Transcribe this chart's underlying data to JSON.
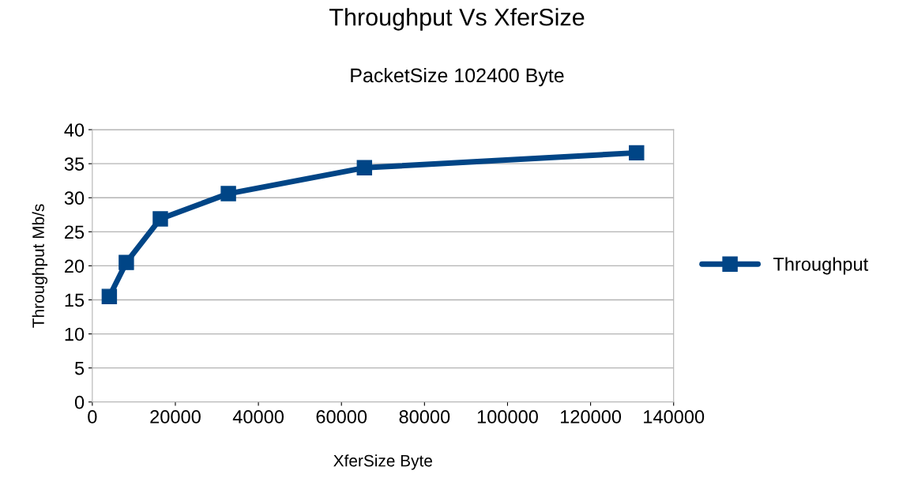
{
  "chart_data": {
    "type": "line",
    "title": "Throughput Vs XferSize",
    "subtitle": "PacketSize 102400 Byte",
    "xlabel": "XferSize Byte",
    "ylabel": "Throughput Mb/s",
    "x": [
      4096,
      8192,
      16384,
      32768,
      65536,
      131072
    ],
    "series": [
      {
        "name": "Throughput",
        "color": "#004586",
        "values": [
          15.5,
          20.5,
          26.9,
          30.6,
          34.4,
          36.6
        ]
      }
    ],
    "xlim": [
      0,
      140000
    ],
    "xticks": [
      0,
      20000,
      40000,
      60000,
      80000,
      100000,
      120000,
      140000
    ],
    "ylim": [
      0,
      40
    ],
    "yticks": [
      0,
      5,
      10,
      15,
      20,
      25,
      30,
      35,
      40
    ],
    "grid": "y",
    "legend": "right",
    "marker": "square",
    "line_style": "solid"
  }
}
